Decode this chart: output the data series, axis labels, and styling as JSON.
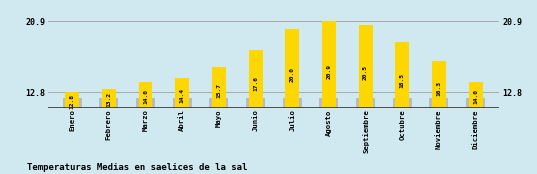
{
  "months": [
    "Enero",
    "Febrero",
    "Marzo",
    "Abril",
    "Mayo",
    "Junio",
    "Julio",
    "Agosto",
    "Septiembre",
    "Octubre",
    "Noviembre",
    "Diciembre"
  ],
  "values": [
    12.8,
    13.2,
    14.0,
    14.4,
    15.7,
    17.6,
    20.0,
    20.9,
    20.5,
    18.5,
    16.3,
    14.0
  ],
  "gray_heights": [
    12.1,
    12.1,
    12.1,
    12.1,
    12.1,
    12.1,
    12.1,
    12.1,
    12.1,
    12.1,
    12.1,
    12.1
  ],
  "bar_color_yellow": "#FFD700",
  "bar_color_gray": "#BBBBBB",
  "background_color": "#D0E8F0",
  "title": "Temperaturas Medias en saelices de la sal",
  "ytick_values": [
    12.8,
    20.9
  ],
  "ytick_labels": [
    "12.8",
    "20.9"
  ],
  "hline_color": "#AAAAAA",
  "axis_line_color": "#333333",
  "title_fontsize": 6.5,
  "tick_fontsize": 6,
  "value_fontsize": 4.5,
  "month_fontsize": 5.2,
  "ymin": 11.0,
  "ymax": 22.5
}
